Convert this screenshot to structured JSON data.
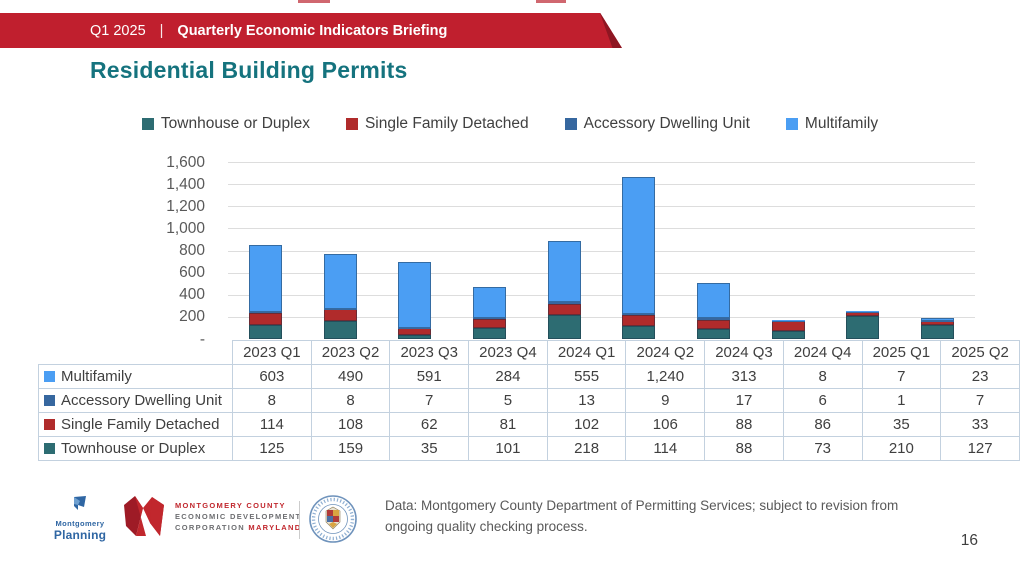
{
  "banner": {
    "quarter": "Q1 2025",
    "separator": "|",
    "title": "Quarterly Economic Indicators Briefing"
  },
  "page_title": "Residential Building Permits",
  "colors": {
    "banner_red": "#C01F2E",
    "banner_fold": "#8E1622",
    "title_teal": "#15737E",
    "grid": "#DDDDDD",
    "axis_text": "#595959",
    "table_border": "#C3D1DF",
    "table_text": "#3F3F3F"
  },
  "chart_data": {
    "type": "bar",
    "stacked": true,
    "categories": [
      "2023 Q1",
      "2023 Q2",
      "2023 Q3",
      "2023 Q4",
      "2024 Q1",
      "2024 Q2",
      "2024 Q3",
      "2024 Q4",
      "2025 Q1",
      "2025 Q2"
    ],
    "series": [
      {
        "name": "Townhouse or Duplex",
        "color": "#2D6C72",
        "values": [
          125,
          159,
          35,
          101,
          218,
          114,
          88,
          73,
          210,
          127
        ]
      },
      {
        "name": "Single Family Detached",
        "color": "#B02B2B",
        "values": [
          114,
          108,
          62,
          81,
          102,
          106,
          88,
          86,
          35,
          33
        ]
      },
      {
        "name": "Accessory Dwelling Unit",
        "color": "#36679F",
        "values": [
          8,
          8,
          7,
          5,
          13,
          9,
          17,
          6,
          1,
          7
        ]
      },
      {
        "name": "Multifamily",
        "color": "#4B9EF3",
        "values": [
          603,
          490,
          591,
          284,
          555,
          1240,
          313,
          8,
          7,
          23
        ]
      }
    ],
    "ylim": [
      0,
      1600
    ],
    "ytick_interval": 200,
    "zero_tick_label": "-",
    "grid": true,
    "legend_position": "top",
    "data_table_row_order": [
      "Multifamily",
      "Accessory Dwelling Unit",
      "Single Family Detached",
      "Townhouse or Duplex"
    ]
  },
  "footer": {
    "planning_logo": {
      "top": "Montgomery",
      "bottom": "Planning"
    },
    "mcedc_logo": {
      "line1": "MONTGOMERY COUNTY",
      "line2": "ECONOMIC DEVELOPMENT",
      "line3_gray": "CORPORATION",
      "line3_red": "MARYLAND"
    },
    "source_note": "Data: Montgomery County Department of Permitting Services; subject to revision from ongoing quality checking process.",
    "page_number": "16"
  }
}
